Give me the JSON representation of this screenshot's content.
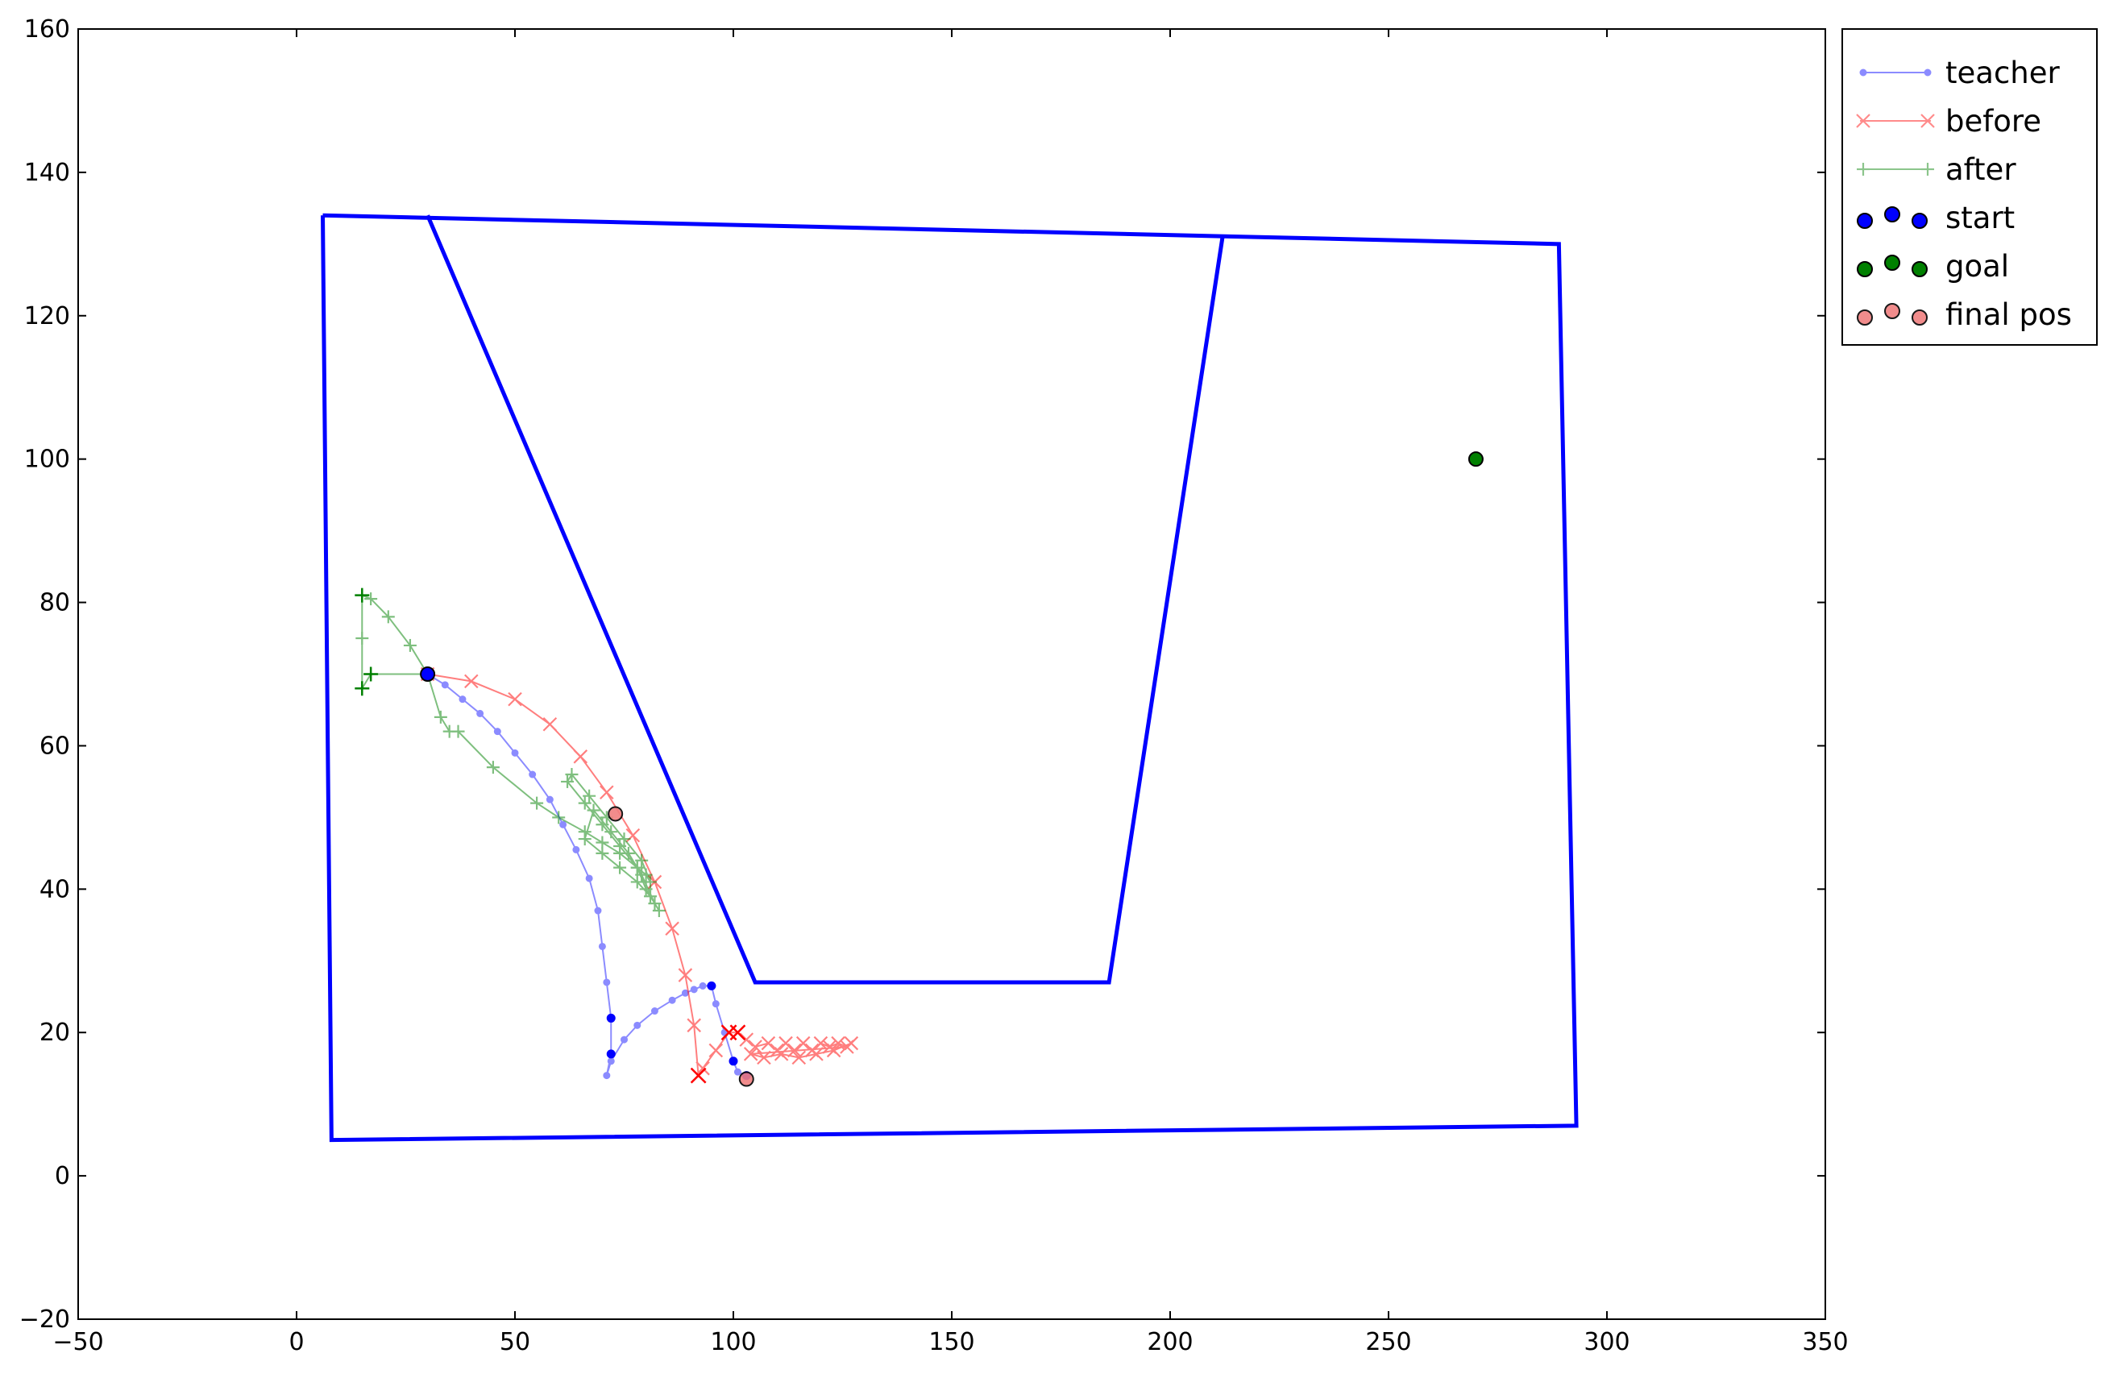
{
  "chart_data": {
    "type": "scatter",
    "title": "",
    "xlabel": "",
    "ylabel": "",
    "xlim": [
      -50,
      350
    ],
    "ylim": [
      -20,
      160
    ],
    "xticks": [
      -50,
      0,
      50,
      100,
      150,
      200,
      250,
      300,
      350
    ],
    "yticks": [
      -20,
      0,
      20,
      40,
      60,
      80,
      100,
      120,
      140,
      160
    ],
    "xtick_labels": [
      "−50",
      "0",
      "50",
      "100",
      "150",
      "200",
      "250",
      "300",
      "350"
    ],
    "ytick_labels": [
      "−20",
      "0",
      "20",
      "40",
      "60",
      "80",
      "100",
      "120",
      "140",
      "160"
    ],
    "grid": false,
    "legend_placement": "outside-top-right",
    "colors": {
      "teacher": "#0000ff",
      "before": "#ff0000",
      "after": "#008000",
      "walls": "#0000ff",
      "start": "#0000ff",
      "goal": "#008000",
      "final_pos": "#f08080"
    },
    "walls": [
      {
        "x": [
          6,
          289,
          293,
          8,
          6
        ],
        "y": [
          134,
          130,
          7,
          5,
          134
        ]
      },
      {
        "x": [
          30,
          105,
          186,
          212
        ],
        "y": [
          134,
          27,
          27,
          131
        ]
      }
    ],
    "series": [
      {
        "name": "teacher",
        "marker": "dot",
        "x": [
          30,
          34,
          38,
          42,
          46,
          50,
          54,
          58,
          61,
          64,
          67,
          69,
          70,
          71,
          72,
          72,
          71,
          72,
          75,
          78,
          82,
          86,
          89,
          91,
          93,
          95,
          96,
          98,
          100,
          101,
          103
        ],
        "y": [
          70,
          68.5,
          66.5,
          64.5,
          62,
          59,
          56,
          52.5,
          49,
          45.5,
          41.5,
          37,
          32,
          27,
          22,
          17,
          14,
          16,
          19,
          21,
          23,
          24.5,
          25.5,
          26,
          26.5,
          26.5,
          24,
          20,
          16,
          14.5,
          14
        ]
      },
      {
        "name": "before",
        "marker": "x",
        "x": [
          30,
          40,
          50,
          58,
          65,
          71,
          77,
          82,
          86,
          89,
          91,
          92,
          93,
          96,
          99,
          101,
          103,
          105,
          108,
          110,
          112,
          114,
          116,
          118,
          120,
          122,
          124,
          126,
          104,
          107,
          111,
          115,
          119,
          123,
          127
        ],
        "y": [
          70,
          69,
          66.5,
          63,
          58.5,
          53.5,
          47.5,
          41,
          34.5,
          28,
          21,
          14,
          15,
          17.5,
          20,
          20,
          19,
          18,
          18.5,
          17.5,
          18.5,
          17.5,
          18.5,
          17.5,
          18.5,
          18,
          18.5,
          18,
          17,
          16.5,
          17,
          16.5,
          17,
          17.5,
          18.5
        ]
      },
      {
        "name": "after",
        "marker": "plus",
        "x": [
          30,
          26,
          21,
          17,
          15,
          15,
          15,
          17,
          30,
          33,
          35,
          37,
          45,
          55,
          60,
          66,
          70,
          74,
          78,
          80,
          81,
          79,
          75,
          71,
          67,
          63,
          62,
          66,
          70,
          74,
          78,
          80,
          82,
          79,
          76,
          72,
          68,
          66,
          70,
          74,
          78,
          81,
          83
        ],
        "y": [
          70,
          74,
          78,
          80.5,
          81,
          75,
          68,
          70,
          70,
          64,
          62,
          62,
          57,
          52,
          50,
          48,
          46.5,
          45,
          43,
          42,
          41,
          44,
          47,
          50,
          53,
          56,
          55,
          52,
          49,
          46,
          43,
          40,
          38,
          42,
          45,
          48,
          51,
          47,
          45,
          43,
          41,
          39,
          37
        ]
      }
    ],
    "points": [
      {
        "name": "start",
        "x": 30,
        "y": 70
      },
      {
        "name": "goal",
        "x": 270,
        "y": 100
      },
      {
        "name": "final pos",
        "x": 73,
        "y": 50.5
      },
      {
        "name": "final pos",
        "x": 103,
        "y": 13.5
      }
    ],
    "legend": [
      {
        "label": "teacher",
        "kind": "line-dot",
        "color": "#0000ff"
      },
      {
        "label": "before",
        "kind": "line-x",
        "color": "#ff0000"
      },
      {
        "label": "after",
        "kind": "line-plus",
        "color": "#008000"
      },
      {
        "label": "start",
        "kind": "scatter",
        "color": "#0000ff"
      },
      {
        "label": "goal",
        "kind": "scatter",
        "color": "#008000"
      },
      {
        "label": "final pos",
        "kind": "scatter",
        "color": "#f08080"
      }
    ]
  }
}
